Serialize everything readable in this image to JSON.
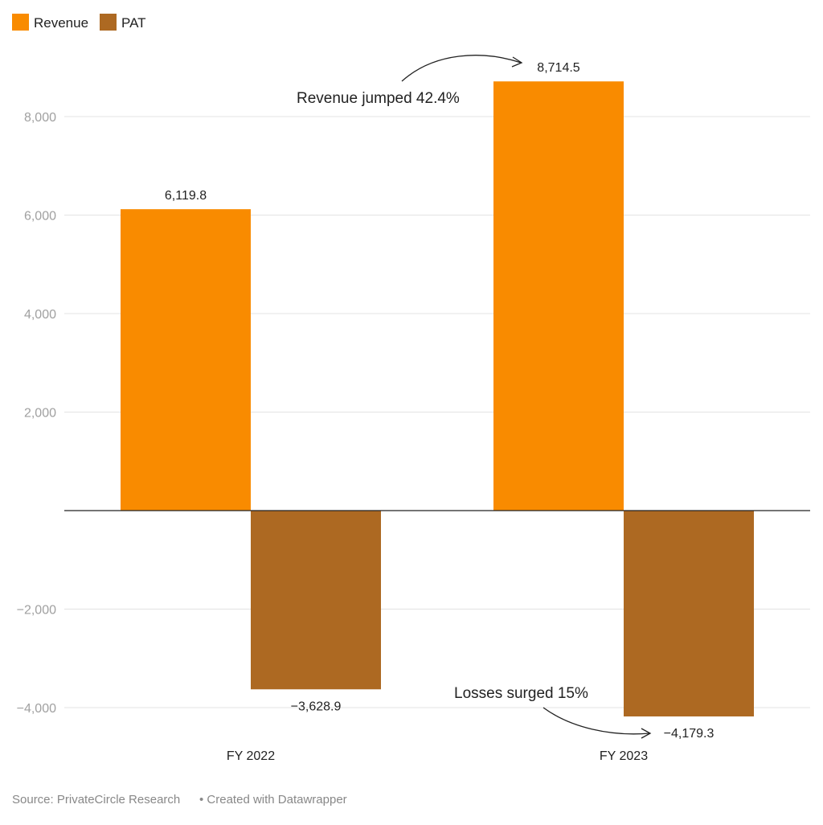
{
  "chart_data": {
    "type": "bar",
    "categories": [
      "FY 2022",
      "FY 2023"
    ],
    "series": [
      {
        "name": "Revenue",
        "values": [
          6119.8,
          8714.5
        ],
        "color": "#f98b00"
      },
      {
        "name": "PAT",
        "values": [
          -3628.9,
          -4179.3
        ],
        "color": "#ad6922"
      }
    ],
    "data_labels": [
      [
        "6,119.8",
        "8,714.5"
      ],
      [
        "−3,628.9",
        "−4,179.3"
      ]
    ],
    "yticks": [
      -4000,
      -2000,
      2000,
      4000,
      6000,
      8000
    ],
    "ytick_labels": [
      "−4,000",
      "−2,000",
      "2,000",
      "4,000",
      "6,000",
      "8,000"
    ],
    "ylim": [
      -4300,
      8900
    ],
    "grid": true,
    "legend_placement": "top-left",
    "annotations": [
      "Revenue jumped 42.4%",
      "Losses surged 15%"
    ]
  },
  "footer": {
    "source": "Source: PrivateCircle Research",
    "credit": "• Created with Datawrapper"
  }
}
